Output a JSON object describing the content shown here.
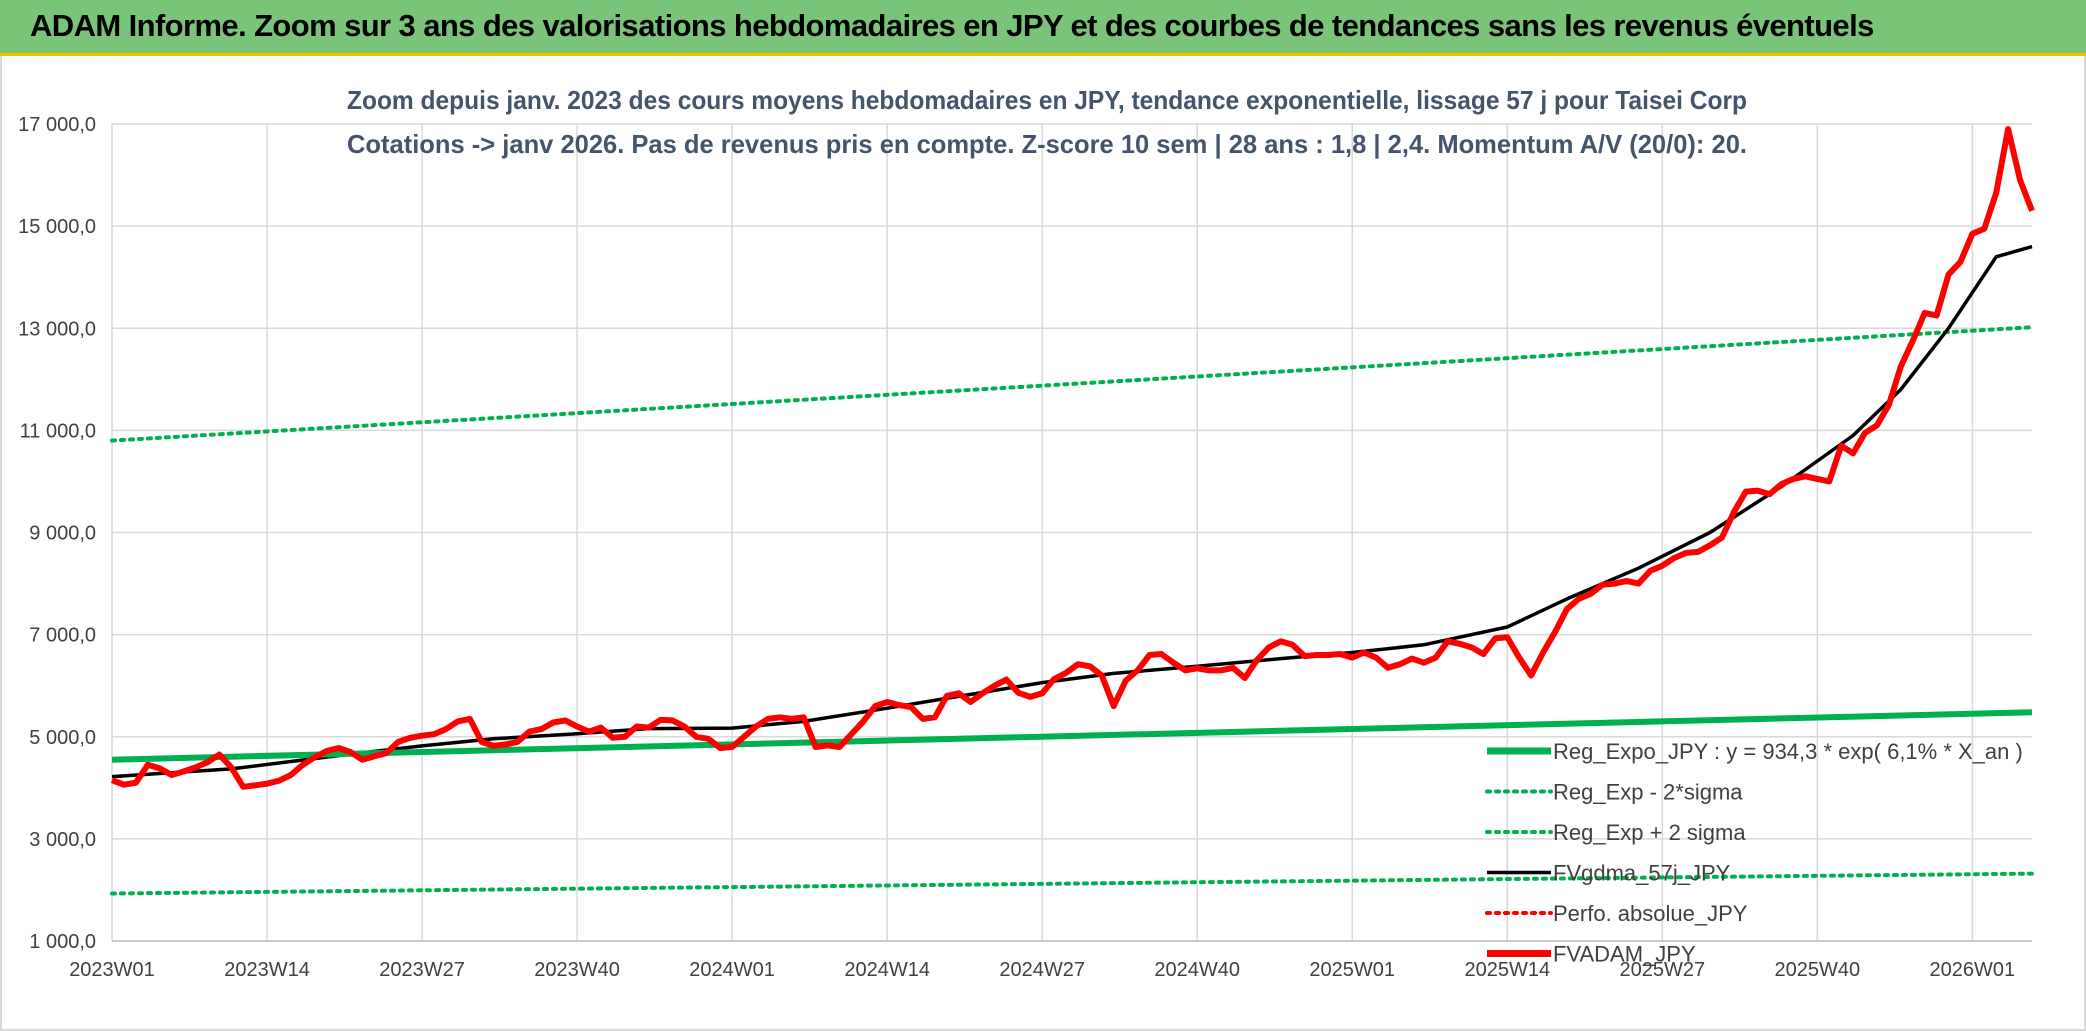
{
  "banner": {
    "title": "ADAM Informe. Zoom sur 3 ans des valorisations hebdomadaires en JPY et des courbes de tendances sans les revenus éventuels"
  },
  "chart_data": {
    "type": "line",
    "title_line1": "Zoom depuis janv. 2023 des cours moyens hebdomadaires en JPY, tendance exponentielle, lissage 57 j pour Taisei Corp",
    "title_line2": "Cotations -> janv 2026. Pas de revenus pris en compte. Z-score 10 sem | 28 ans : 1,8 | 2,4. Momentum A/V (20/0): 20.",
    "y_tick_labels": [
      "1 000,0",
      "3 000,0",
      "5 000,0",
      "7 000,0",
      "9 000,0",
      "11 000,0",
      "13 000,0",
      "15 000,0",
      "17 000,0"
    ],
    "y_ticks": [
      1000,
      3000,
      5000,
      7000,
      9000,
      11000,
      13000,
      15000,
      17000
    ],
    "ylim": [
      1000,
      17000
    ],
    "x_tick_labels": [
      "2023W01",
      "2023W14",
      "2023W27",
      "2023W40",
      "2024W01",
      "2024W14",
      "2024W27",
      "2024W40",
      "2025W01",
      "2025W14",
      "2025W27",
      "2025W40",
      "2026W01"
    ],
    "x_tick_index": [
      0,
      13,
      26,
      39,
      52,
      65,
      78,
      91,
      104,
      117,
      130,
      143,
      156
    ],
    "n_points": 162,
    "grid": true,
    "legend_position": "bottom-right",
    "series": [
      {
        "name": "Reg_Expo_JPY : y = 934,3 * exp( 6,1% *  X_an )",
        "color": "#00b050",
        "style": "solid-thick",
        "x": [
          0,
          161
        ],
        "y": [
          4550,
          5480
        ]
      },
      {
        "name": "Reg_Exp - 2*sigma",
        "color": "#00b050",
        "style": "dotted",
        "x": [
          0,
          161
        ],
        "y": [
          1930,
          2320
        ]
      },
      {
        "name": "Reg_Exp + 2 sigma",
        "color": "#00b050",
        "style": "dotted",
        "x": [
          0,
          161
        ],
        "y": [
          10800,
          13020
        ]
      },
      {
        "name": "FVgdma_57j_JPY",
        "color": "#000000",
        "style": "solid",
        "x": [
          0,
          10,
          20,
          26,
          32,
          39,
          45,
          52,
          58,
          65,
          72,
          78,
          84,
          91,
          98,
          104,
          110,
          117,
          122,
          128,
          134,
          140,
          146,
          150,
          154,
          158,
          161
        ],
        "y": [
          4220,
          4370,
          4660,
          4820,
          4960,
          5060,
          5160,
          5170,
          5300,
          5560,
          5830,
          6060,
          6240,
          6380,
          6530,
          6650,
          6800,
          7150,
          7700,
          8300,
          9000,
          9900,
          10900,
          11800,
          13000,
          14400,
          14600
        ]
      },
      {
        "name": "Perfo. absolue_JPY",
        "color": "#ff0000",
        "style": "dotted",
        "x": [],
        "y": []
      },
      {
        "name": "FVADAM_JPY",
        "color": "#ff0000",
        "style": "solid-thick",
        "x": [
          0,
          1,
          2,
          3,
          4,
          5,
          6,
          7,
          8,
          9,
          10,
          11,
          12,
          13,
          14,
          15,
          16,
          17,
          18,
          19,
          20,
          21,
          22,
          23,
          24,
          25,
          26,
          27,
          28,
          29,
          30,
          31,
          32,
          33,
          34,
          35,
          36,
          37,
          38,
          39,
          40,
          41,
          42,
          43,
          44,
          45,
          46,
          47,
          48,
          49,
          50,
          51,
          52,
          53,
          54,
          55,
          56,
          57,
          58,
          59,
          60,
          61,
          62,
          63,
          64,
          65,
          66,
          67,
          68,
          69,
          70,
          71,
          72,
          73,
          74,
          75,
          76,
          77,
          78,
          79,
          80,
          81,
          82,
          83,
          84,
          85,
          86,
          87,
          88,
          89,
          90,
          91,
          92,
          93,
          94,
          95,
          96,
          97,
          98,
          99,
          100,
          101,
          102,
          103,
          104,
          105,
          106,
          107,
          108,
          109,
          110,
          111,
          112,
          113,
          114,
          115,
          116,
          117,
          118,
          119,
          120,
          121,
          122,
          123,
          124,
          125,
          126,
          127,
          128,
          129,
          130,
          131,
          132,
          133,
          134,
          135,
          136,
          137,
          138,
          139,
          140,
          141,
          142,
          143,
          144,
          145,
          146,
          147,
          148,
          149,
          150,
          151,
          152,
          153,
          154,
          155,
          156,
          157,
          158,
          159,
          160,
          161
        ],
        "y": [
          4150,
          4060,
          4100,
          4450,
          4380,
          4250,
          4320,
          4400,
          4500,
          4650,
          4400,
          4020,
          4050,
          4080,
          4140,
          4250,
          4450,
          4600,
          4720,
          4780,
          4700,
          4550,
          4620,
          4680,
          4900,
          4980,
          5020,
          5050,
          5150,
          5300,
          5350,
          4900,
          4820,
          4850,
          4900,
          5100,
          5150,
          5280,
          5320,
          5200,
          5100,
          5180,
          4980,
          5000,
          5200,
          5180,
          5330,
          5320,
          5200,
          5000,
          4960,
          4780,
          4800,
          5000,
          5200,
          5350,
          5380,
          5350,
          5380,
          4800,
          4830,
          4800,
          5050,
          5300,
          5600,
          5680,
          5620,
          5580,
          5350,
          5380,
          5800,
          5850,
          5680,
          5850,
          6000,
          6120,
          5860,
          5780,
          5850,
          6130,
          6250,
          6420,
          6380,
          6200,
          5600,
          6100,
          6300,
          6600,
          6620,
          6450,
          6300,
          6340,
          6300,
          6300,
          6350,
          6150,
          6500,
          6750,
          6870,
          6800,
          6580,
          6600,
          6600,
          6620,
          6550,
          6650,
          6550,
          6350,
          6420,
          6530,
          6450,
          6550,
          6870,
          6820,
          6750,
          6620,
          6930,
          6950,
          6550,
          6200,
          6650,
          7050,
          7500,
          7700,
          7800,
          7980,
          8000,
          8050,
          8000,
          8250,
          8350,
          8500,
          8600,
          8620,
          8750,
          8900,
          9400,
          9800,
          9820,
          9750,
          9950,
          10050,
          10100,
          10050,
          10000,
          10700,
          10550,
          10950,
          11100,
          11500,
          12250,
          12750,
          13300,
          13250,
          14050,
          14300,
          14850,
          14950,
          15650,
          16900,
          15900,
          15300
        ]
      }
    ]
  }
}
